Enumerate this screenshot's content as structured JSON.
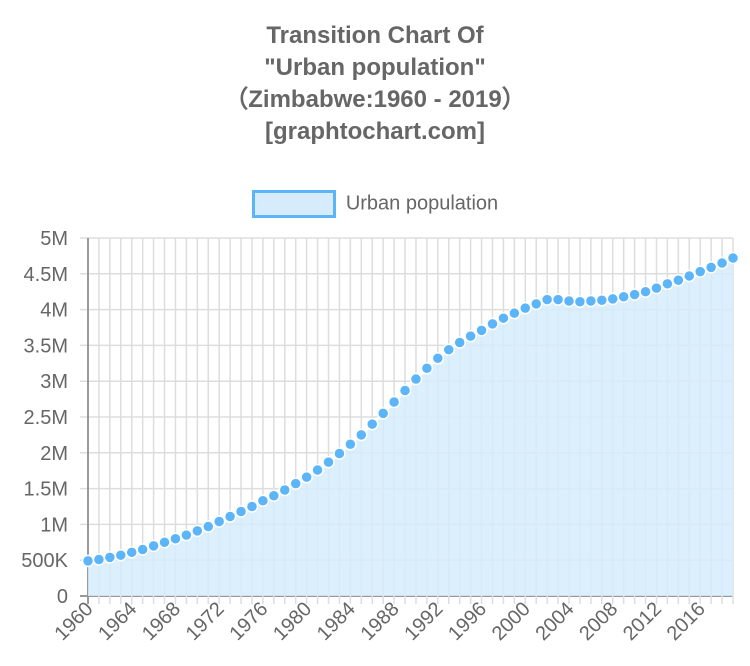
{
  "chart_data": {
    "type": "line",
    "title": [
      "Transition Chart Of",
      "\"Urban population\"",
      "（Zimbabwe:1960 - 2019）",
      "[graphtochart.com]"
    ],
    "legend": {
      "label": "Urban population",
      "position": "top"
    },
    "series": [
      {
        "name": "Urban population",
        "color": "#5bb5f8",
        "fill": "#d6ecfd",
        "values": [
          0.49,
          0.51,
          0.54,
          0.57,
          0.61,
          0.65,
          0.7,
          0.75,
          0.8,
          0.85,
          0.91,
          0.97,
          1.04,
          1.11,
          1.18,
          1.25,
          1.33,
          1.4,
          1.48,
          1.57,
          1.66,
          1.76,
          1.87,
          1.99,
          2.12,
          2.25,
          2.4,
          2.55,
          2.71,
          2.87,
          3.03,
          3.18,
          3.32,
          3.44,
          3.54,
          3.63,
          3.71,
          3.8,
          3.88,
          3.95,
          4.02,
          4.08,
          4.14,
          4.14,
          4.12,
          4.11,
          4.12,
          4.13,
          4.15,
          4.18,
          4.21,
          4.25,
          4.3,
          4.36,
          4.41,
          4.47,
          4.53,
          4.59,
          4.65,
          4.72
        ]
      }
    ],
    "x_start": 1960,
    "x_end": 2019,
    "x_tick_labels": [
      "1960",
      "1964",
      "1968",
      "1972",
      "1976",
      "1980",
      "1984",
      "1988",
      "1992",
      "1996",
      "2000",
      "2004",
      "2008",
      "2012",
      "2016"
    ],
    "y_tick_labels": [
      "0",
      "500K",
      "1M",
      "1.5M",
      "2M",
      "2.5M",
      "3M",
      "3.5M",
      "4M",
      "4.5M",
      "5M"
    ],
    "ylim": [
      0,
      5
    ],
    "y_unit": "millions",
    "grid": true
  }
}
